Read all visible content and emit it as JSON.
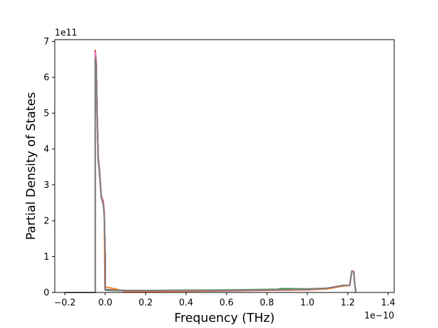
{
  "chart_data": {
    "type": "line",
    "title": "",
    "xlabel": "Frequency (THz)",
    "ylabel": "Partial Density of States",
    "x_offset_label": "1e−10",
    "y_offset_label": "1e11",
    "x_scale": 1e-10,
    "y_scale": 100000000000.0,
    "xlim": [
      -0.25,
      1.43
    ],
    "ylim": [
      0,
      7.05
    ],
    "x_ticks": [
      -0.2,
      0.0,
      0.2,
      0.4,
      0.6,
      0.8,
      1.0,
      1.2,
      1.4
    ],
    "x_tick_labels": [
      "−0.2",
      "0.0",
      "0.2",
      "0.4",
      "0.6",
      "0.8",
      "1.0",
      "1.2",
      "1.4"
    ],
    "y_ticks": [
      0,
      1,
      2,
      3,
      4,
      5,
      6,
      7
    ],
    "y_tick_labels": [
      "0",
      "1",
      "2",
      "3",
      "4",
      "5",
      "6",
      "7"
    ],
    "grid": false,
    "legend": "none",
    "series": [
      {
        "color": "#1f77b4",
        "x": [
          -0.2,
          -0.05,
          -0.05,
          -0.045,
          -0.04,
          -0.035,
          -0.03,
          -0.02,
          -0.01,
          -0.005,
          0.0,
          0.0,
          0.05,
          0.1,
          0.3,
          0.6,
          0.85,
          1.0,
          1.1,
          1.18,
          1.21,
          1.22,
          1.23,
          1.235,
          1.24,
          1.24
        ],
        "y": [
          0,
          0,
          6.6,
          6.4,
          4.9,
          3.8,
          3.5,
          2.7,
          2.5,
          2.2,
          0.9,
          0.08,
          0.07,
          0.06,
          0.05,
          0.05,
          0.07,
          0.08,
          0.12,
          0.2,
          0.2,
          0.6,
          0.58,
          0.2,
          0.05,
          0
        ]
      },
      {
        "color": "#ff7f0e",
        "x": [
          -0.2,
          -0.05,
          -0.05,
          -0.045,
          -0.04,
          -0.035,
          -0.03,
          -0.02,
          -0.01,
          -0.005,
          -0.002,
          0.0,
          0.0,
          0.05,
          0.1,
          0.3,
          0.6,
          0.85,
          1.0,
          1.1,
          1.18,
          1.21,
          1.22,
          1.23,
          1.235,
          1.24,
          1.24
        ],
        "y": [
          0,
          0,
          6.7,
          6.5,
          5.0,
          3.8,
          3.5,
          2.7,
          2.5,
          2.2,
          0.1,
          1.1,
          0.15,
          0.1,
          0.02,
          0.03,
          0.04,
          0.06,
          0.07,
          0.1,
          0.18,
          0.19,
          0.58,
          0.57,
          0.2,
          0.04,
          0
        ]
      },
      {
        "color": "#2ca02c",
        "x": [
          -0.2,
          -0.05,
          -0.05,
          -0.045,
          -0.04,
          -0.035,
          -0.03,
          -0.02,
          -0.01,
          -0.005,
          0.0,
          0.0,
          0.05,
          0.1,
          0.3,
          0.6,
          0.85,
          0.88,
          1.0,
          1.1,
          1.18,
          1.21,
          1.22,
          1.23,
          1.235,
          1.24,
          1.24
        ],
        "y": [
          0,
          0,
          6.65,
          6.45,
          4.9,
          3.7,
          3.4,
          2.7,
          2.5,
          2.2,
          0.9,
          0.06,
          0.05,
          0.05,
          0.06,
          0.07,
          0.09,
          0.11,
          0.1,
          0.12,
          0.2,
          0.2,
          0.6,
          0.58,
          0.2,
          0.05,
          0
        ]
      },
      {
        "color": "#d62728",
        "x": [
          -0.2,
          -0.05,
          -0.05,
          -0.045,
          -0.04,
          -0.035,
          -0.03,
          -0.02,
          -0.01,
          -0.005,
          0.0,
          0.0,
          0.05,
          0.1,
          0.3,
          0.6,
          0.85,
          1.0,
          1.1,
          1.18,
          1.21,
          1.22,
          1.23,
          1.235,
          1.24,
          1.24
        ],
        "y": [
          0,
          0,
          6.75,
          6.5,
          5.0,
          3.8,
          3.5,
          2.7,
          2.55,
          2.25,
          0.9,
          0.07,
          0.06,
          0.05,
          0.05,
          0.05,
          0.07,
          0.08,
          0.12,
          0.2,
          0.2,
          0.6,
          0.59,
          0.2,
          0.05,
          0
        ]
      },
      {
        "color": "#9467bd",
        "x": [
          -0.2,
          -0.05,
          -0.05,
          -0.045,
          -0.04,
          -0.035,
          -0.03,
          -0.02,
          -0.01,
          -0.005,
          0.0,
          0.0,
          0.05,
          0.1,
          0.3,
          0.6,
          0.85,
          1.0,
          1.1,
          1.18,
          1.21,
          1.22,
          1.23,
          1.235,
          1.24,
          1.24
        ],
        "y": [
          0,
          0,
          6.7,
          6.45,
          4.95,
          3.8,
          3.5,
          2.7,
          2.5,
          2.2,
          0.9,
          0.07,
          0.06,
          0.05,
          0.05,
          0.05,
          0.07,
          0.08,
          0.12,
          0.2,
          0.2,
          0.6,
          0.59,
          0.2,
          0.05,
          0
        ]
      },
      {
        "color": "#8c564b",
        "x": [
          -0.2,
          -0.05,
          -0.05,
          -0.045,
          -0.04,
          -0.035,
          -0.03,
          -0.02,
          -0.01,
          -0.005,
          0.0,
          0.0,
          0.05,
          0.1,
          0.3,
          0.6,
          0.85,
          1.0,
          1.1,
          1.18,
          1.21,
          1.22,
          1.23,
          1.235,
          1.24,
          1.24
        ],
        "y": [
          0,
          0,
          6.7,
          6.45,
          4.95,
          3.8,
          3.5,
          2.7,
          2.5,
          2.2,
          0.9,
          0.07,
          0.06,
          0.05,
          0.05,
          0.05,
          0.07,
          0.08,
          0.12,
          0.2,
          0.2,
          0.6,
          0.59,
          0.2,
          0.05,
          0
        ]
      },
      {
        "color": "#e377c2",
        "x": [
          -0.2,
          -0.05,
          -0.05,
          -0.045,
          -0.04,
          -0.035,
          -0.03,
          -0.02,
          -0.01,
          -0.005,
          0.0,
          0.0,
          0.05,
          0.1,
          0.3,
          0.6,
          0.85,
          1.0,
          1.1,
          1.18,
          1.21,
          1.22,
          1.23,
          1.235,
          1.24,
          1.24
        ],
        "y": [
          0,
          0,
          6.7,
          6.45,
          4.95,
          3.8,
          3.5,
          2.7,
          2.5,
          2.2,
          0.9,
          0.07,
          0.06,
          0.05,
          0.05,
          0.05,
          0.07,
          0.08,
          0.12,
          0.2,
          0.2,
          0.6,
          0.59,
          0.2,
          0.05,
          0
        ]
      },
      {
        "color": "#7f7f7f",
        "x": [
          -0.2,
          -0.05,
          -0.05,
          -0.045,
          -0.04,
          -0.035,
          -0.03,
          -0.02,
          -0.01,
          -0.005,
          0.0,
          0.0,
          0.05,
          0.1,
          0.3,
          0.6,
          0.85,
          1.0,
          1.1,
          1.18,
          1.21,
          1.22,
          1.23,
          1.235,
          1.24,
          1.24
        ],
        "y": [
          0,
          0,
          6.55,
          6.35,
          4.85,
          3.7,
          3.45,
          2.65,
          2.45,
          2.15,
          0.85,
          0.07,
          0.06,
          0.05,
          0.06,
          0.06,
          0.08,
          0.09,
          0.12,
          0.2,
          0.2,
          0.58,
          0.57,
          0.2,
          0.05,
          0
        ]
      }
    ]
  }
}
